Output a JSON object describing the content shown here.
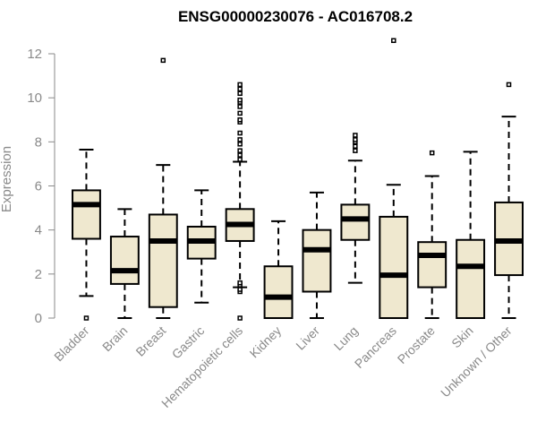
{
  "chart_data": {
    "type": "box",
    "title": "ENSG00000230076 - AC016708.2",
    "xlabel": "",
    "ylabel": "Expression",
    "ylim": [
      0,
      12
    ],
    "yticks": [
      0,
      2,
      4,
      6,
      8,
      10,
      12
    ],
    "box_fill": "#efe8cf",
    "stroke": "#000000",
    "categories": [
      "Bladder",
      "Brain",
      "Breast",
      "Gastric",
      "Hematopoietic cells",
      "Kidney",
      "Liver",
      "Lung",
      "Pancreas",
      "Prostate",
      "Skin",
      "Unknown / Other"
    ],
    "boxes": [
      {
        "whisker_low": 1.0,
        "q1": 3.6,
        "median": 5.15,
        "q3": 5.8,
        "whisker_high": 7.65,
        "outliers": [
          0.0
        ]
      },
      {
        "whisker_low": 0.0,
        "q1": 1.55,
        "median": 2.15,
        "q3": 3.7,
        "whisker_high": 4.95,
        "outliers": []
      },
      {
        "whisker_low": 0.0,
        "q1": 0.5,
        "median": 3.5,
        "q3": 4.7,
        "whisker_high": 6.95,
        "outliers": [
          11.7
        ]
      },
      {
        "whisker_low": 0.7,
        "q1": 2.7,
        "median": 3.5,
        "q3": 4.15,
        "whisker_high": 5.8,
        "outliers": []
      },
      {
        "whisker_low": 1.4,
        "q1": 3.5,
        "median": 4.25,
        "q3": 4.95,
        "whisker_high": 7.1,
        "outliers": [
          0.0,
          1.2,
          1.3,
          1.5,
          1.6,
          7.2,
          7.4,
          7.6,
          7.9,
          8.1,
          8.4,
          8.9,
          9.0,
          9.3,
          9.6,
          9.8,
          9.9,
          10.2,
          10.4,
          10.6
        ]
      },
      {
        "whisker_low": 0.0,
        "q1": 0.0,
        "median": 0.95,
        "q3": 2.35,
        "whisker_high": 4.4,
        "outliers": []
      },
      {
        "whisker_low": 0.0,
        "q1": 1.2,
        "median": 3.1,
        "q3": 4.0,
        "whisker_high": 5.7,
        "outliers": []
      },
      {
        "whisker_low": 1.6,
        "q1": 3.55,
        "median": 4.5,
        "q3": 5.15,
        "whisker_high": 7.15,
        "outliers": [
          7.6,
          7.8,
          8.0,
          8.1,
          8.3
        ]
      },
      {
        "whisker_low": 0.0,
        "q1": 0.0,
        "median": 1.95,
        "q3": 4.6,
        "whisker_high": 6.05,
        "outliers": [
          12.6
        ]
      },
      {
        "whisker_low": 0.0,
        "q1": 1.4,
        "median": 2.85,
        "q3": 3.45,
        "whisker_high": 6.45,
        "outliers": [
          7.5
        ]
      },
      {
        "whisker_low": 0.0,
        "q1": 0.0,
        "median": 2.35,
        "q3": 3.55,
        "whisker_high": 7.55,
        "outliers": []
      },
      {
        "whisker_low": 0.0,
        "q1": 1.95,
        "median": 3.5,
        "q3": 5.25,
        "whisker_high": 9.15,
        "outliers": [
          10.6
        ]
      }
    ]
  }
}
